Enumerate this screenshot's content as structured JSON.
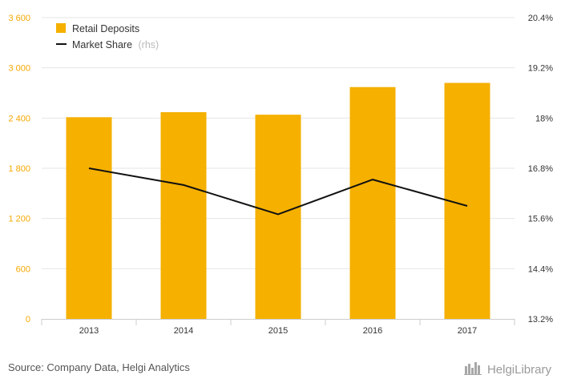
{
  "chart_data": {
    "type": "bar",
    "categories": [
      "2013",
      "2014",
      "2015",
      "2016",
      "2017"
    ],
    "series": [
      {
        "name": "Retail Deposits",
        "type": "bar",
        "axis": "left",
        "values": [
          2410,
          2470,
          2440,
          2770,
          2820
        ],
        "color": "#f5b000"
      },
      {
        "name": "Market Share",
        "axis_note": "(rhs)",
        "type": "line",
        "axis": "right",
        "values": [
          16.8,
          16.4,
          15.7,
          16.53,
          15.9
        ],
        "color": "#111111"
      }
    ],
    "left_axis": {
      "ylim": [
        0,
        3600
      ],
      "ticks": [
        0,
        600,
        1200,
        1800,
        2400,
        3000,
        3600
      ],
      "tick_labels": [
        "0",
        "600",
        "1 200",
        "1 800",
        "2 400",
        "3 000",
        "3 600"
      ],
      "color": "#f5a800"
    },
    "right_axis": {
      "ylim": [
        13.2,
        20.4
      ],
      "ticks": [
        13.2,
        14.4,
        15.6,
        16.8,
        18.0,
        19.2,
        20.4
      ],
      "tick_labels": [
        "13.2%",
        "14.4%",
        "15.6%",
        "16.8%",
        "18%",
        "19.2%",
        "20.4%"
      ]
    },
    "grid": true,
    "legend_position": "top-left"
  },
  "footer": {
    "source": "Source: Company Data, Helgi Analytics",
    "brand": "HelgiLibrary"
  }
}
